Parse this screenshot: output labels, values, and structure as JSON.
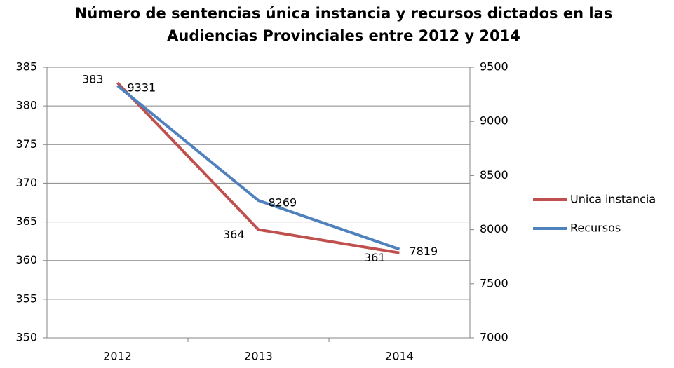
{
  "chart_data": {
    "type": "line",
    "title": [
      "Número de sentencias única instancia y recursos dictados en las",
      "Audiencias Provinciales entre 2012 y 2014"
    ],
    "categories": [
      "2012",
      "2013",
      "2014"
    ],
    "series": [
      {
        "name": "Unica instancia",
        "color": "#c0504d",
        "values": [
          383,
          364,
          361
        ]
      },
      {
        "name": "Recursos",
        "color": "#4f81bd",
        "values": [
          9331,
          8269,
          7819
        ],
        "axis": "y2"
      }
    ],
    "ylim": [
      350,
      385
    ],
    "yticks": [
      350,
      355,
      360,
      365,
      370,
      375,
      380,
      385
    ],
    "y2lim": [
      7000,
      9500
    ],
    "y2ticks": [
      7000,
      7500,
      8000,
      8500,
      9000,
      9500
    ],
    "grid": true,
    "legend": "right"
  }
}
